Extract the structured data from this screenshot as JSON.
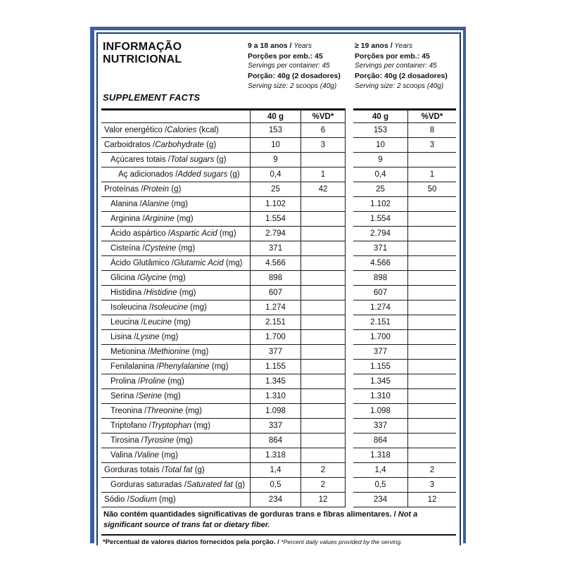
{
  "panel": {
    "title_line1": "INFORMAÇÃO",
    "title_line2": "NUTRICIONAL",
    "subtitle": "SUPPLEMENT FACTS",
    "colors": {
      "frame_outer": "#3e5f9e",
      "frame_inner": "#1e3b6d",
      "line": "#1a1a1a"
    },
    "columns": [
      {
        "age_pt": "9 a 18 anos /",
        "age_en": "Years",
        "servings_pt": "Porções por emb.: 45",
        "servings_en": "Servings per container: 45",
        "portion_pt": "Porção: 40g (2 dosadores)",
        "portion_en": "Serving size: 2 scoops (40g)"
      },
      {
        "age_pt": "≥ 19 anos /",
        "age_en": "Years",
        "servings_pt": "Porções por emb.: 45",
        "servings_en": "Servings per container: 45",
        "portion_pt": "Porção: 40g (2 dosadores)",
        "portion_en": "Serving size: 2 scoops (40g)"
      }
    ],
    "table": {
      "amount_header": "40 g",
      "dv_header": "%VD*",
      "rows": [
        {
          "pt": "Valor energético",
          "en": "Calories",
          "unit": "kcal",
          "indent": 0,
          "v1": "153",
          "p1": "6",
          "v2": "153",
          "p2": "8"
        },
        {
          "pt": "Carboidratos",
          "en": "Carbohydrate",
          "unit": "g",
          "indent": 0,
          "v1": "10",
          "p1": "3",
          "v2": "10",
          "p2": "3"
        },
        {
          "pt": "Açúcares totais",
          "en": "Total sugars",
          "unit": "g",
          "indent": 1,
          "v1": "9",
          "p1": "",
          "v2": "9",
          "p2": ""
        },
        {
          "pt": "Aç adicionados",
          "en": "Added sugars",
          "unit": "g",
          "indent": 2,
          "v1": "0,4",
          "p1": "1",
          "v2": "0,4",
          "p2": "1"
        },
        {
          "pt": "Proteínas",
          "en": "Protein",
          "unit": "g",
          "indent": 0,
          "v1": "25",
          "p1": "42",
          "v2": "25",
          "p2": "50"
        },
        {
          "pt": "Alanina",
          "en": "Alanine",
          "unit": "mg",
          "indent": 1,
          "v1": "1.102",
          "p1": "",
          "v2": "1.102",
          "p2": ""
        },
        {
          "pt": "Arginina",
          "en": "Arginine",
          "unit": "mg",
          "indent": 1,
          "v1": "1.554",
          "p1": "",
          "v2": "1.554",
          "p2": ""
        },
        {
          "pt": "Ácido aspártico",
          "en": "Aspartic Acid",
          "unit": "mg",
          "indent": 1,
          "v1": "2.794",
          "p1": "",
          "v2": "2.794",
          "p2": ""
        },
        {
          "pt": "Cisteína",
          "en": "Cysteine",
          "unit": "mg",
          "indent": 1,
          "v1": "371",
          "p1": "",
          "v2": "371",
          "p2": ""
        },
        {
          "pt": "Ácido Glutâmico",
          "en": "Glutamic Acid",
          "unit": "mg",
          "indent": 1,
          "v1": "4.566",
          "p1": "",
          "v2": "4.566",
          "p2": ""
        },
        {
          "pt": "Glicina",
          "en": "Glycine",
          "unit": "mg",
          "indent": 1,
          "v1": "898",
          "p1": "",
          "v2": "898",
          "p2": ""
        },
        {
          "pt": "Histidina",
          "en": "Histidine",
          "unit": "mg",
          "indent": 1,
          "v1": "607",
          "p1": "",
          "v2": "607",
          "p2": ""
        },
        {
          "pt": "Isoleucina",
          "en": "Isoleucine",
          "unit": "mg",
          "indent": 1,
          "v1": "1.274",
          "p1": "",
          "v2": "1.274",
          "p2": ""
        },
        {
          "pt": "Leucina",
          "en": "Leucine",
          "unit": "mg",
          "indent": 1,
          "v1": "2.151",
          "p1": "",
          "v2": "2.151",
          "p2": ""
        },
        {
          "pt": "Lisina",
          "en": "Lysine",
          "unit": "mg",
          "indent": 1,
          "v1": "1.700",
          "p1": "",
          "v2": "1.700",
          "p2": ""
        },
        {
          "pt": "Metionina",
          "en": "Methionine",
          "unit": "mg",
          "indent": 1,
          "v1": "377",
          "p1": "",
          "v2": "377",
          "p2": ""
        },
        {
          "pt": "Fenilalanina",
          "en": "Phenylalanine",
          "unit": "mg",
          "indent": 1,
          "v1": "1.155",
          "p1": "",
          "v2": "1.155",
          "p2": ""
        },
        {
          "pt": "Prolina",
          "en": "Proline",
          "unit": "mg",
          "indent": 1,
          "v1": "1.345",
          "p1": "",
          "v2": "1.345",
          "p2": ""
        },
        {
          "pt": "Serina",
          "en": "Serine",
          "unit": "mg",
          "indent": 1,
          "v1": "1.310",
          "p1": "",
          "v2": "1.310",
          "p2": ""
        },
        {
          "pt": "Treonina",
          "en": "Threonine",
          "unit": "mg",
          "indent": 1,
          "v1": "1.098",
          "p1": "",
          "v2": "1.098",
          "p2": ""
        },
        {
          "pt": "Triptofano",
          "en": "Tryptophan",
          "unit": "mg",
          "indent": 1,
          "v1": "337",
          "p1": "",
          "v2": "337",
          "p2": ""
        },
        {
          "pt": "Tirosina",
          "en": "Tyrosine",
          "unit": "mg",
          "indent": 1,
          "v1": "864",
          "p1": "",
          "v2": "864",
          "p2": ""
        },
        {
          "pt": "Valina",
          "en": "Valine",
          "unit": "mg",
          "indent": 1,
          "v1": "1.318",
          "p1": "",
          "v2": "1.318",
          "p2": ""
        },
        {
          "pt": "Gorduras totais",
          "en": "Total fat",
          "unit": "g",
          "indent": 0,
          "v1": "1,4",
          "p1": "2",
          "v2": "1,4",
          "p2": "2"
        },
        {
          "pt": "Gorduras saturadas",
          "en": "Saturated fat",
          "unit": "g",
          "indent": 1,
          "v1": "0,5",
          "p1": "2",
          "v2": "0,5",
          "p2": "3"
        },
        {
          "pt": "Sódio",
          "en": "Sodium",
          "unit": "mg",
          "indent": 0,
          "v1": "234",
          "p1": "12",
          "v2": "234",
          "p2": "12"
        }
      ]
    },
    "note_pt": "Não contém quantidades significativas de gorduras trans e fibras alimentares. /",
    "note_en": "Not a significant source of trans fat or dietary fiber.",
    "footnote_pt": "*Percentual de valores diários fornecidos pela porção. /",
    "footnote_en": "*Percent daily values provided by the serving."
  }
}
